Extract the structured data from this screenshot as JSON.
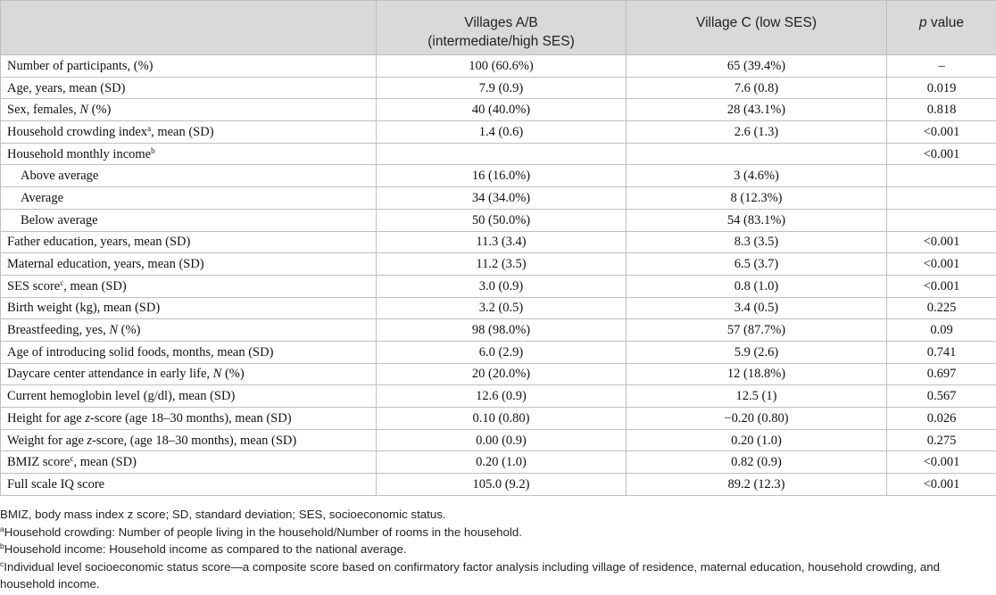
{
  "header": {
    "col1": "",
    "col2_line1": "Villages A/B",
    "col2_line2": "(intermediate/high SES)",
    "col3": "Village C (low SES)",
    "col4_p": "p",
    "col4_rest": " value"
  },
  "rows": [
    {
      "pre": "Number of participants, (%)",
      "a": "100 (60.6%)",
      "c": "65 (39.4%)",
      "p": "–"
    },
    {
      "pre": "Age, years, mean (SD)",
      "a": "7.9 (0.9)",
      "c": "7.6 (0.8)",
      "p": "0.019"
    },
    {
      "pre": "Sex, females, ",
      "it": "N",
      "post": " (%)",
      "a": "40 (40.0%)",
      "c": "28 (43.1%)",
      "p": "0.818"
    },
    {
      "pre": "Household crowding index",
      "sup": "a",
      "post": ", mean (SD)",
      "a": "1.4 (0.6)",
      "c": "2.6 (1.3)",
      "p": "<0.001"
    },
    {
      "pre": "Household monthly income",
      "sup": "b",
      "a": "",
      "c": "",
      "p": "<0.001"
    },
    {
      "pre": "Above average",
      "a": "16 (16.0%)",
      "c": "3 (4.6%)",
      "p": ""
    },
    {
      "pre": "Average",
      "a": "34 (34.0%)",
      "c": "8 (12.3%)",
      "p": ""
    },
    {
      "pre": "Below average",
      "a": "50 (50.0%)",
      "c": "54 (83.1%)",
      "p": ""
    },
    {
      "pre": "Father education, years, mean (SD)",
      "a": "11.3 (3.4)",
      "c": "8.3 (3.5)",
      "p": "<0.001"
    },
    {
      "pre": "Maternal education, years, mean (SD)",
      "a": "11.2 (3.5)",
      "c": "6.5 (3.7)",
      "p": "<0.001"
    },
    {
      "pre": "SES score",
      "sup": "c",
      "post": ", mean (SD)",
      "a": "3.0 (0.9)",
      "c": "0.8 (1.0)",
      "p": "<0.001"
    },
    {
      "pre": "Birth weight (kg), mean (SD)",
      "a": "3.2 (0.5)",
      "c": "3.4 (0.5)",
      "p": "0.225"
    },
    {
      "pre": "Breastfeeding, yes, ",
      "it": "N",
      "post": " (%)",
      "a": "98 (98.0%)",
      "c": "57 (87.7%)",
      "p": "0.09"
    },
    {
      "pre": "Age of introducing solid foods, months, mean (SD)",
      "a": "6.0 (2.9)",
      "c": "5.9 (2.6)",
      "p": "0.741"
    },
    {
      "pre": "Daycare center attendance in early life, ",
      "it": "N",
      "post": " (%)",
      "a": "20 (20.0%)",
      "c": "12 (18.8%)",
      "p": "0.697"
    },
    {
      "pre": "Current hemoglobin level (g/dl), mean (SD)",
      "a": "12.6 (0.9)",
      "c": "12.5 (1)",
      "p": "0.567"
    },
    {
      "pre": "Height for age ",
      "it": "z",
      "post": "-score (age 18–30 months), mean (SD)",
      "a": "0.10 (0.80)",
      "c": "−0.20 (0.80)",
      "p": "0.026"
    },
    {
      "pre": "Weight for age ",
      "it": "z",
      "post": "-score, (age 18–30 months), mean (SD)",
      "a": "0.00 (0.9)",
      "c": "0.20 (1.0)",
      "p": "0.275"
    },
    {
      "pre": "BMIZ score",
      "sup": "c",
      "post": ", mean (SD)",
      "a": "0.20 (1.0)",
      "c": "0.82 (0.9)",
      "p": "<0.001"
    },
    {
      "pre": "Full scale IQ score",
      "a": "105.0 (9.2)",
      "c": "89.2 (12.3)",
      "p": "<0.001"
    }
  ],
  "notes": {
    "abbrev": "BMIZ, body mass index z score; SD, standard deviation; SES, socioeconomic status.",
    "a_mark": "a",
    "a_text": "Household crowding: Number of people living in the household/Number of rooms in the household.",
    "b_mark": "b",
    "b_text": "Household income: Household income as compared to the national average.",
    "c_mark": "c",
    "c_text": "Individual level socioeconomic status score—a composite score based on confirmatory factor analysis including village of residence, maternal education, household crowding, and household income."
  }
}
